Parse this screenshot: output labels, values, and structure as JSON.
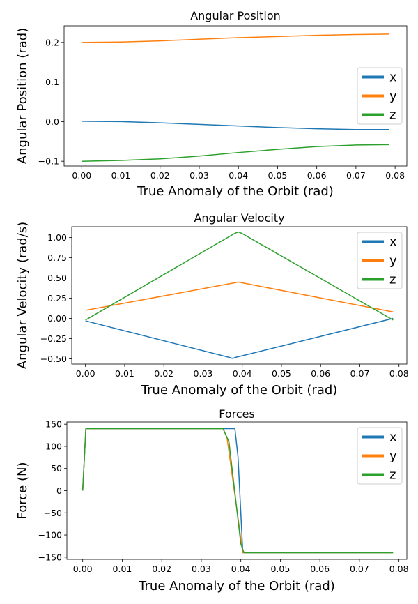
{
  "chart_data": [
    {
      "type": "line",
      "title": "Angular Position",
      "xlabel": "True Anomaly of the Orbit (rad)",
      "ylabel": "Angular Position (rad)",
      "xlim": [
        -0.0045,
        0.083
      ],
      "ylim": [
        -0.112,
        0.242
      ],
      "xticks": [
        0.0,
        0.01,
        0.02,
        0.03,
        0.04,
        0.05,
        0.06,
        0.07,
        0.08
      ],
      "xtick_labels": [
        "0.00",
        "0.01",
        "0.02",
        "0.03",
        "0.04",
        "0.05",
        "0.06",
        "0.07",
        "0.08"
      ],
      "yticks": [
        -0.1,
        0.0,
        0.1,
        0.2
      ],
      "ytick_labels": [
        "−0.1",
        "0.0",
        "0.1",
        "0.2"
      ],
      "legend_position": "center-right",
      "grid": false,
      "series": [
        {
          "name": "x",
          "color": "#1f77b4",
          "x": [
            0.0,
            0.01,
            0.02,
            0.03,
            0.04,
            0.05,
            0.06,
            0.07,
            0.0785
          ],
          "values": [
            0.001,
            0.0,
            -0.003,
            -0.007,
            -0.011,
            -0.015,
            -0.018,
            -0.02,
            -0.02
          ]
        },
        {
          "name": "y",
          "color": "#ff7f0e",
          "x": [
            0.0,
            0.01,
            0.02,
            0.03,
            0.04,
            0.05,
            0.06,
            0.07,
            0.0785
          ],
          "values": [
            0.2,
            0.201,
            0.204,
            0.208,
            0.212,
            0.215,
            0.218,
            0.22,
            0.221
          ]
        },
        {
          "name": "z",
          "color": "#2ca02c",
          "x": [
            0.0,
            0.01,
            0.02,
            0.03,
            0.04,
            0.05,
            0.06,
            0.07,
            0.0785
          ],
          "values": [
            -0.1,
            -0.098,
            -0.094,
            -0.087,
            -0.078,
            -0.07,
            -0.063,
            -0.059,
            -0.058
          ]
        }
      ]
    },
    {
      "type": "line",
      "title": "Angular Velocity",
      "xlabel": "True Anomaly of the Orbit (rad)",
      "ylabel": "Angular Velocity (rad/s)",
      "xlim": [
        -0.0035,
        0.082
      ],
      "ylim": [
        -0.565,
        1.135
      ],
      "xticks": [
        0.0,
        0.01,
        0.02,
        0.03,
        0.04,
        0.05,
        0.06,
        0.07,
        0.08
      ],
      "xtick_labels": [
        "0.00",
        "0.01",
        "0.02",
        "0.03",
        "0.04",
        "0.05",
        "0.06",
        "0.07",
        "0.08"
      ],
      "yticks": [
        -0.5,
        -0.25,
        0.0,
        0.25,
        0.5,
        0.75,
        1.0
      ],
      "ytick_labels": [
        "−0.50",
        "−0.25",
        "0.00",
        "0.25",
        "0.50",
        "0.75",
        "1.00"
      ],
      "legend_position": "upper-right",
      "grid": false,
      "series": [
        {
          "name": "x",
          "color": "#1f77b4",
          "x": [
            0.0,
            0.0365,
            0.0375,
            0.0385,
            0.0785
          ],
          "values": [
            -0.03,
            -0.48,
            -0.495,
            -0.48,
            0.0
          ]
        },
        {
          "name": "y",
          "color": "#ff7f0e",
          "x": [
            0.0,
            0.038,
            0.039,
            0.04,
            0.0785
          ],
          "values": [
            0.1,
            0.44,
            0.45,
            0.44,
            0.08
          ]
        },
        {
          "name": "z",
          "color": "#2ca02c",
          "x": [
            0.0,
            0.038,
            0.039,
            0.04,
            0.0785
          ],
          "values": [
            -0.02,
            1.05,
            1.07,
            1.05,
            -0.02
          ]
        }
      ]
    },
    {
      "type": "line",
      "title": "Forces",
      "xlabel": "True Anomaly of the Orbit (rad)",
      "ylabel": "Force (N)",
      "xlim": [
        -0.004,
        0.082
      ],
      "ylim": [
        -155,
        155
      ],
      "xticks": [
        0.0,
        0.01,
        0.02,
        0.03,
        0.04,
        0.05,
        0.06,
        0.07,
        0.08
      ],
      "xtick_labels": [
        "0.00",
        "0.01",
        "0.02",
        "0.03",
        "0.04",
        "0.05",
        "0.06",
        "0.07",
        "0.08"
      ],
      "yticks": [
        -150,
        -100,
        -50,
        0,
        50,
        100,
        150
      ],
      "ytick_labels": [
        "−150",
        "−100",
        "−50",
        "0",
        "50",
        "100",
        "150"
      ],
      "legend_position": "upper-right",
      "grid": false,
      "series": [
        {
          "name": "x",
          "color": "#1f77b4",
          "x": [
            0.0,
            0.0008,
            0.0385,
            0.0393,
            0.0405,
            0.0785
          ],
          "values": [
            0,
            140,
            140,
            75,
            -140,
            -140
          ]
        },
        {
          "name": "y",
          "color": "#ff7f0e",
          "x": [
            0.0,
            0.0008,
            0.0355,
            0.0365,
            0.0405,
            0.0785
          ],
          "values": [
            0,
            140,
            140,
            120,
            -140,
            -140
          ]
        },
        {
          "name": "z",
          "color": "#2ca02c",
          "x": [
            0.0,
            0.0008,
            0.0355,
            0.037,
            0.04,
            0.0408,
            0.0785
          ],
          "values": [
            0,
            140,
            140,
            110,
            -120,
            -140,
            -140
          ]
        }
      ]
    }
  ]
}
